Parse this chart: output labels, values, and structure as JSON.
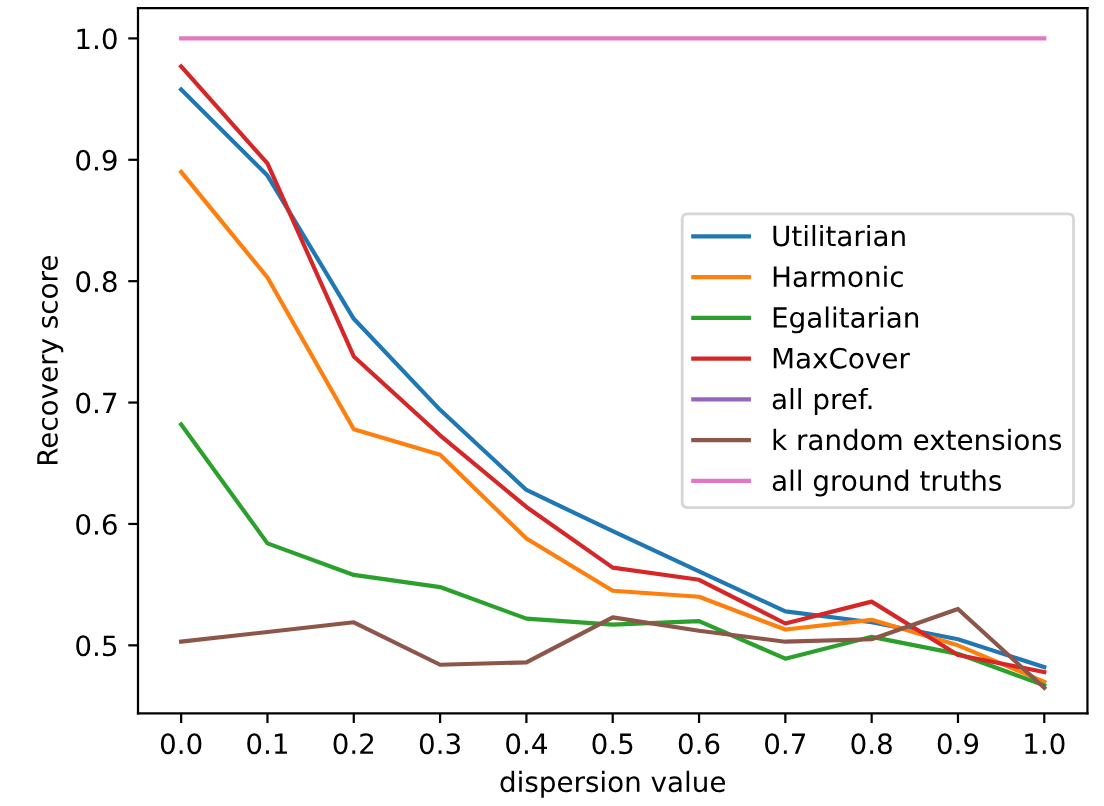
{
  "chart_data": {
    "type": "line",
    "xlabel": "dispersion value",
    "ylabel": "Recovery score",
    "x": [
      0.0,
      0.1,
      0.2,
      0.3,
      0.4,
      0.5,
      0.6,
      0.7,
      0.8,
      0.9,
      1.0
    ],
    "xlim": [
      -0.05,
      1.05
    ],
    "ylim": [
      0.444,
      1.025
    ],
    "xticks": [
      {
        "value": 0.0,
        "label": "0.0"
      },
      0.1,
      0.2,
      0.3,
      0.4,
      0.5,
      0.6,
      0.7,
      0.8,
      0.9,
      {
        "value": 1.0,
        "label": "1.0"
      }
    ],
    "yticks": [
      0.5,
      0.6,
      0.7,
      0.8,
      0.9,
      {
        "value": 1.0,
        "label": "1.0"
      }
    ],
    "legend": "center right",
    "grid": false,
    "marker": "none",
    "line_style": "solid",
    "series": [
      {
        "name": "Utilitarian",
        "color": "#1f77b4",
        "values": [
          0.958,
          0.887,
          0.769,
          0.694,
          0.628,
          0.594,
          0.561,
          0.528,
          0.519,
          0.505,
          0.482
        ]
      },
      {
        "name": "Harmonic",
        "color": "#ff7f0e",
        "values": [
          0.89,
          0.803,
          0.678,
          0.657,
          0.588,
          0.545,
          0.54,
          0.513,
          0.521,
          0.5,
          0.47
        ]
      },
      {
        "name": "Egalitarian",
        "color": "#2ca02c",
        "values": [
          0.682,
          0.584,
          0.558,
          0.548,
          0.522,
          0.517,
          0.52,
          0.489,
          0.507,
          0.493,
          0.467
        ]
      },
      {
        "name": "MaxCover",
        "color": "#d62728",
        "values": [
          0.977,
          0.897,
          0.738,
          0.673,
          0.614,
          0.564,
          0.554,
          0.518,
          0.536,
          0.492,
          0.478
        ]
      },
      {
        "name": "all pref.",
        "color": "#9467bd",
        "values": [
          null,
          null,
          null,
          null,
          null,
          null,
          null,
          null,
          null,
          null,
          null
        ]
      },
      {
        "name": "k random extensions",
        "color": "#8c564b",
        "values": [
          0.503,
          0.511,
          0.519,
          0.484,
          0.486,
          0.523,
          0.512,
          0.503,
          0.505,
          0.53,
          0.465
        ]
      },
      {
        "name": "all ground truths",
        "color": "#e377c2",
        "values": [
          1.0,
          1.0,
          1.0,
          1.0,
          1.0,
          1.0,
          1.0,
          1.0,
          1.0,
          1.0,
          1.0
        ]
      }
    ]
  }
}
